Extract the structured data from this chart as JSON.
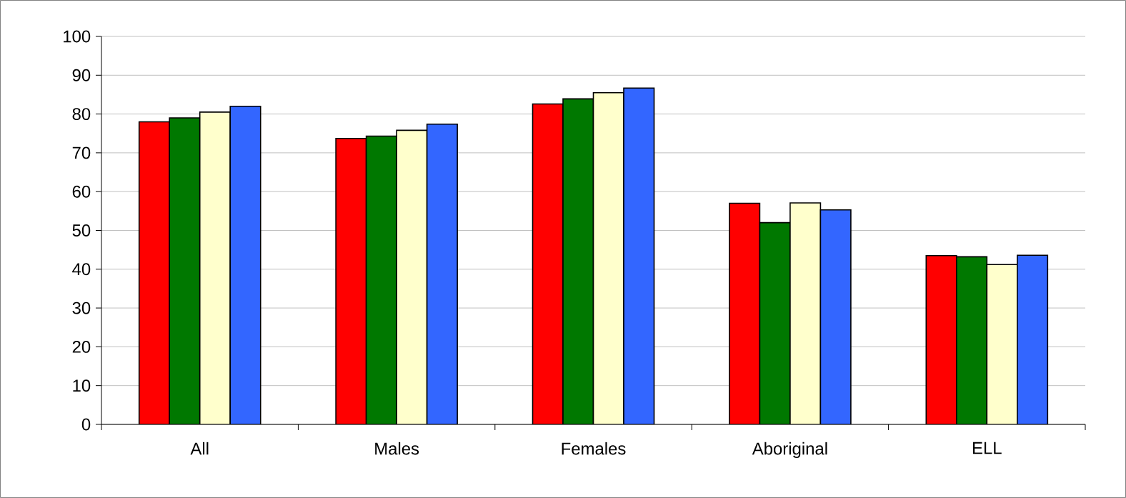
{
  "chart_data": {
    "type": "bar",
    "categories": [
      "All",
      "Males",
      "Females",
      "Aboriginal",
      "ELL"
    ],
    "series": [
      {
        "color": "#ff0000",
        "values": [
          78,
          73.7,
          82.6,
          57,
          43.5
        ]
      },
      {
        "color": "#007800",
        "values": [
          79,
          74.3,
          83.9,
          52,
          43.2
        ]
      },
      {
        "color": "#ffffcc",
        "values": [
          80.5,
          75.8,
          85.5,
          57.1,
          41.2
        ]
      },
      {
        "color": "#3366ff",
        "values": [
          82,
          77.4,
          86.7,
          55.3,
          43.6
        ]
      }
    ],
    "ylim": [
      0,
      100
    ],
    "yticks": [
      0,
      10,
      20,
      30,
      40,
      50,
      60,
      70,
      80,
      90,
      100
    ],
    "grid": "y"
  }
}
